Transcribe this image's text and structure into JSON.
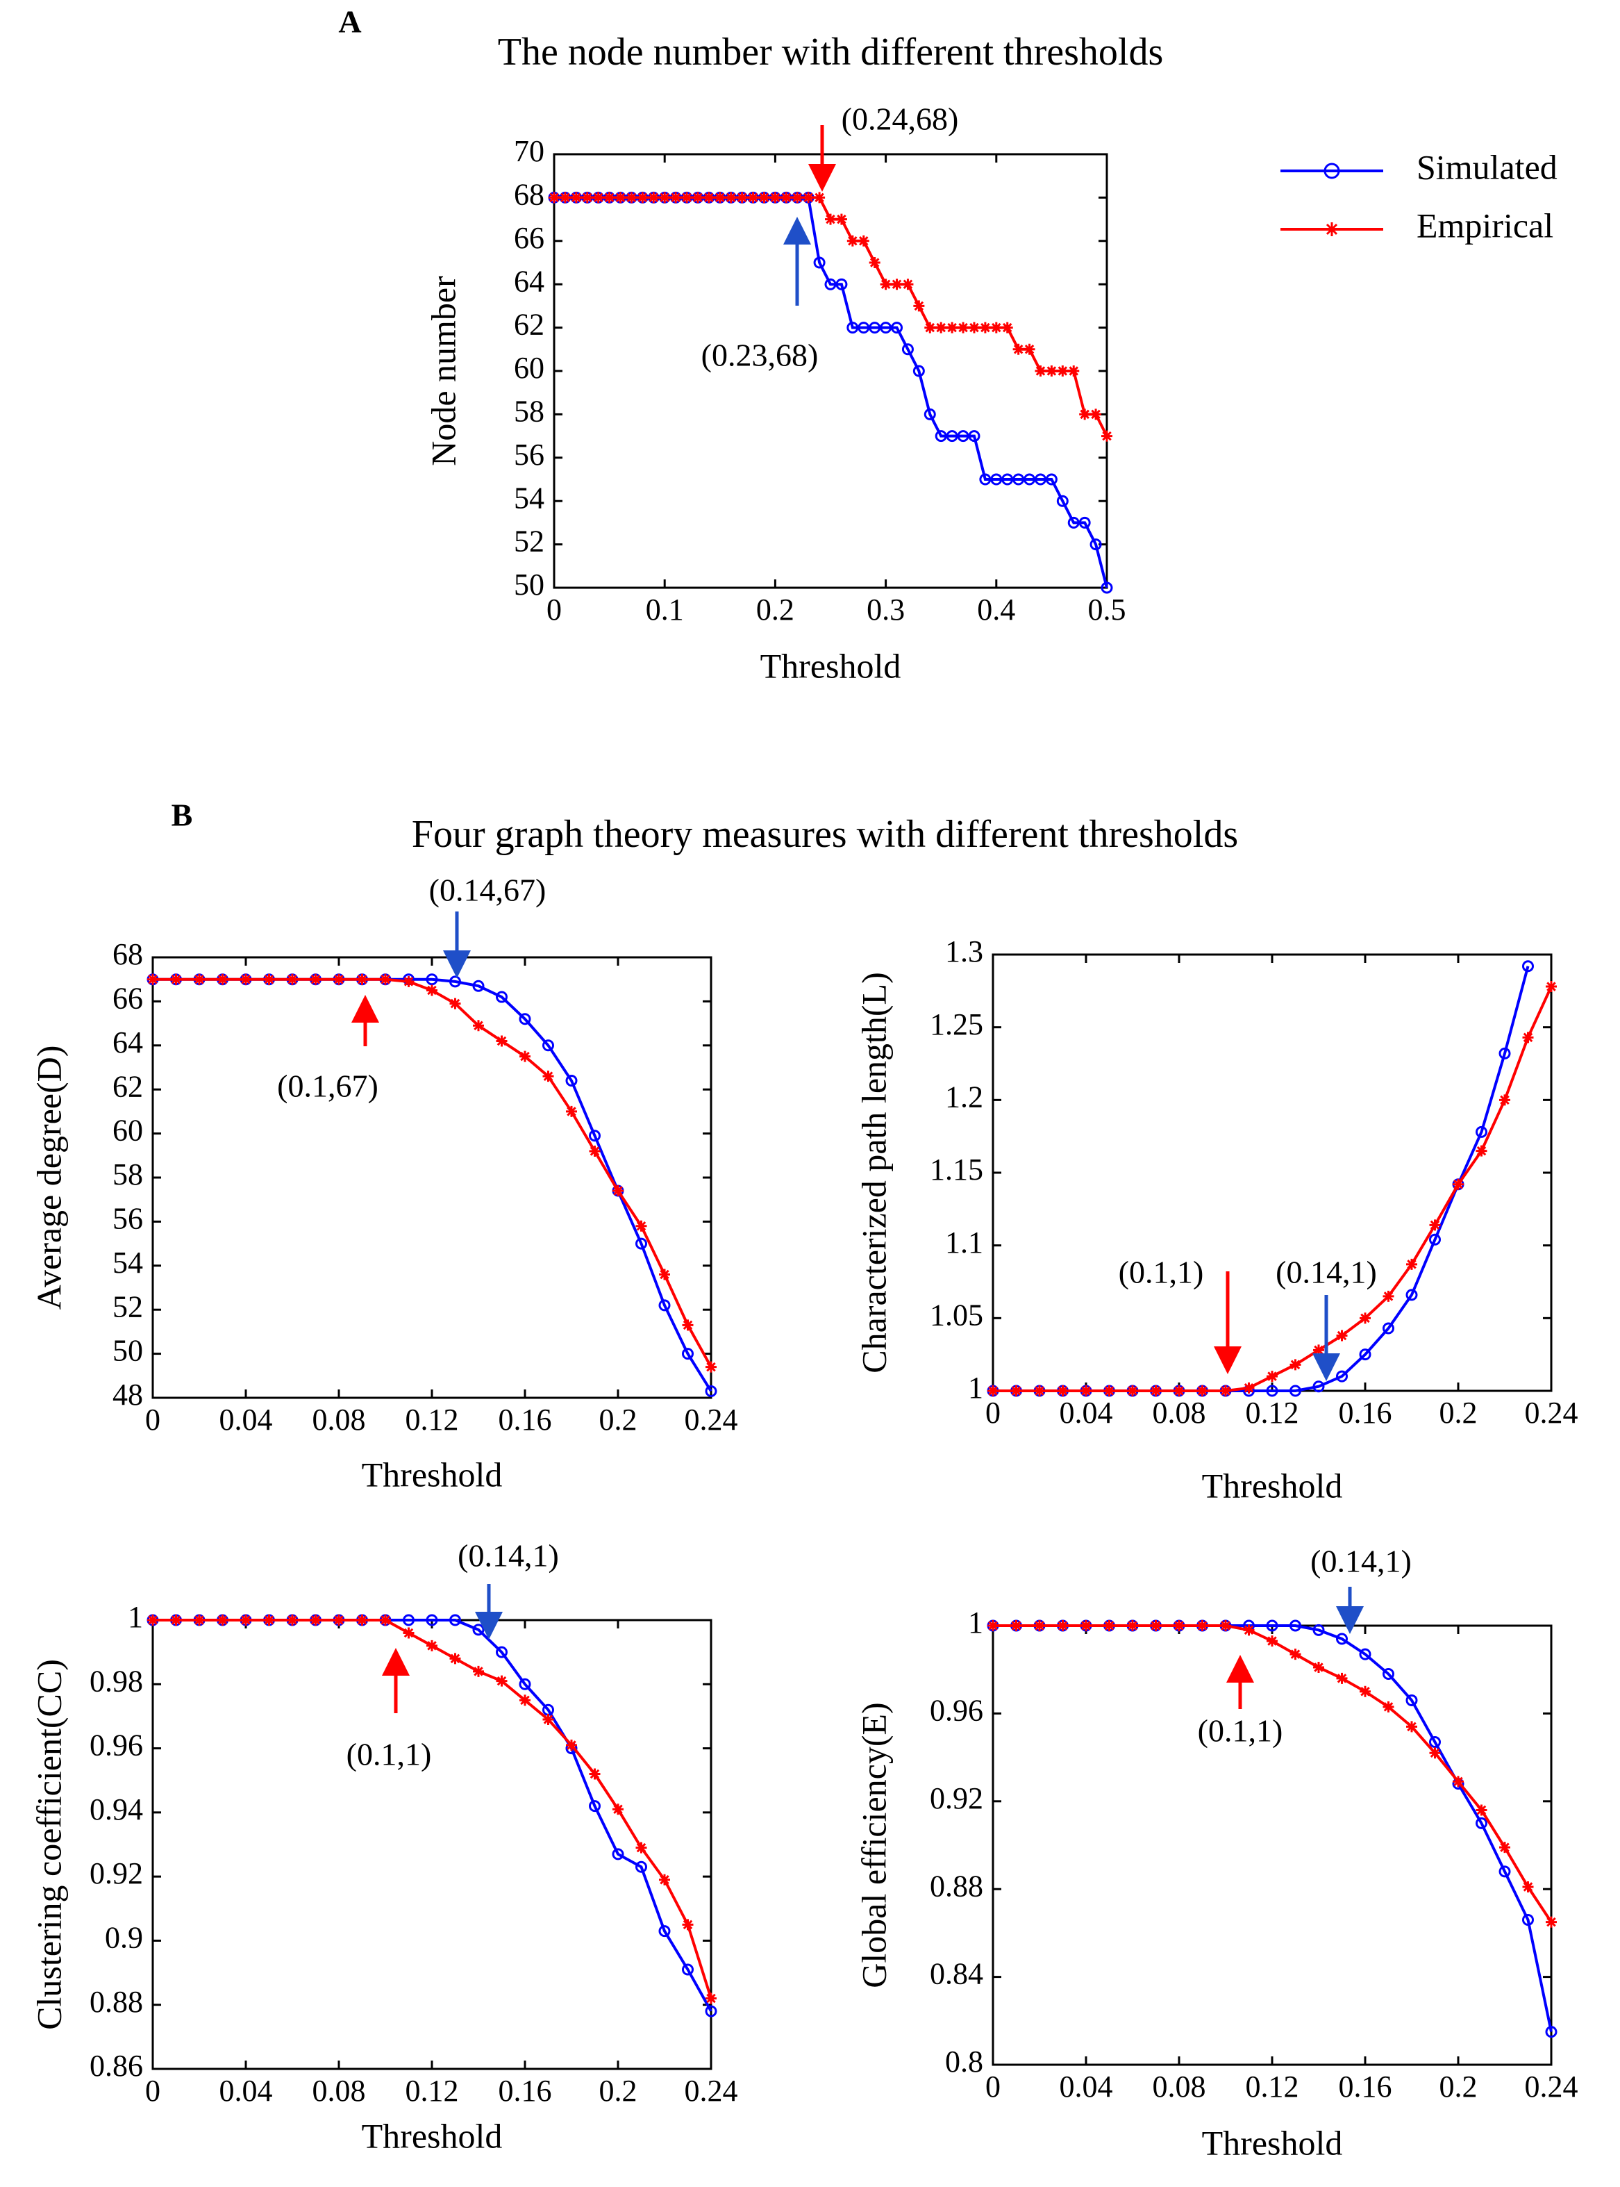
{
  "panels": [
    {
      "label": "A"
    },
    {
      "label": "B",
      "title": "Four graph theory measures with different thresholds"
    }
  ],
  "chart_data": [
    {
      "type": "line",
      "title": "The node number with different thresholds",
      "xlabel": "Threshold",
      "ylabel": "Node number",
      "legend": "right",
      "x": [
        0,
        0.01,
        0.02,
        0.03,
        0.04,
        0.05,
        0.06,
        0.07,
        0.08,
        0.09,
        0.1,
        0.11,
        0.12,
        0.13,
        0.14,
        0.15,
        0.16,
        0.17,
        0.18,
        0.19,
        0.2,
        0.21,
        0.22,
        0.23,
        0.24,
        0.25,
        0.26,
        0.27,
        0.28,
        0.29,
        0.3,
        0.31,
        0.32,
        0.33,
        0.34,
        0.35,
        0.36,
        0.37,
        0.38,
        0.39,
        0.4,
        0.41,
        0.42,
        0.43,
        0.44,
        0.45,
        0.46,
        0.47,
        0.48,
        0.49,
        0.5
      ],
      "xlim": [
        0,
        0.5
      ],
      "xticks": [
        0,
        0.1,
        0.2,
        0.3,
        0.4,
        0.5
      ],
      "ylim": [
        50,
        70
      ],
      "yticks": [
        50,
        52,
        54,
        56,
        58,
        60,
        62,
        64,
        66,
        68,
        70
      ],
      "series": [
        {
          "name": "Simulated",
          "color": "#0000ff",
          "marker": "circle",
          "values": [
            68,
            68,
            68,
            68,
            68,
            68,
            68,
            68,
            68,
            68,
            68,
            68,
            68,
            68,
            68,
            68,
            68,
            68,
            68,
            68,
            68,
            68,
            68,
            68,
            65,
            64,
            64,
            62,
            62,
            62,
            62,
            62,
            61,
            60,
            58,
            57,
            57,
            57,
            57,
            55,
            55,
            55,
            55,
            55,
            55,
            55,
            54,
            53,
            53,
            52,
            50
          ]
        },
        {
          "name": "Empirical",
          "color": "#ff0000",
          "marker": "star",
          "values": [
            68,
            68,
            68,
            68,
            68,
            68,
            68,
            68,
            68,
            68,
            68,
            68,
            68,
            68,
            68,
            68,
            68,
            68,
            68,
            68,
            68,
            68,
            68,
            68,
            68,
            67,
            67,
            66,
            66,
            65,
            64,
            64,
            64,
            63,
            62,
            62,
            62,
            62,
            62,
            62,
            62,
            62,
            61,
            61,
            60,
            60,
            60,
            60,
            58,
            58,
            57
          ]
        }
      ],
      "annotations": [
        {
          "text": "(0.24,68)",
          "color": "#ff0000"
        },
        {
          "text": "(0.23,68)",
          "color": "#1f4fc8"
        }
      ]
    },
    {
      "type": "line",
      "xlabel": "Threshold",
      "ylabel": "Average degree(D)",
      "x": [
        0,
        0.01,
        0.02,
        0.03,
        0.04,
        0.05,
        0.06,
        0.07,
        0.08,
        0.09,
        0.1,
        0.11,
        0.12,
        0.13,
        0.14,
        0.15,
        0.16,
        0.17,
        0.18,
        0.19,
        0.2,
        0.21,
        0.22,
        0.23,
        0.24
      ],
      "xlim": [
        0,
        0.24
      ],
      "xticks": [
        0,
        0.04,
        0.08,
        0.12,
        0.16,
        0.2,
        0.24
      ],
      "ylim": [
        48,
        68
      ],
      "yticks": [
        48,
        50,
        52,
        54,
        56,
        58,
        60,
        62,
        64,
        66,
        68
      ],
      "series": [
        {
          "color": "#0000ff",
          "marker": "circle",
          "values": [
            67,
            67,
            67,
            67,
            67,
            67,
            67,
            67,
            67,
            67,
            67,
            67,
            67,
            66.9,
            66.7,
            66.2,
            65.2,
            64.0,
            62.4,
            59.9,
            57.4,
            55.0,
            52.2,
            50.0,
            48.3
          ]
        },
        {
          "color": "#ff0000",
          "marker": "star",
          "values": [
            67,
            67,
            67,
            67,
            67,
            67,
            67,
            67,
            67,
            67,
            67,
            66.9,
            66.5,
            65.9,
            64.9,
            64.2,
            63.5,
            62.6,
            61.0,
            59.2,
            57.4,
            55.8,
            53.6,
            51.3,
            49.4
          ]
        }
      ],
      "annotations": [
        {
          "text": "(0.14,67)",
          "color": "#1f4fc8"
        },
        {
          "text": "(0.1,67)",
          "color": "#ff0000"
        }
      ]
    },
    {
      "type": "line",
      "xlabel": "Threshold",
      "ylabel": "Characterized path length(L)",
      "x": [
        0,
        0.01,
        0.02,
        0.03,
        0.04,
        0.05,
        0.06,
        0.07,
        0.08,
        0.09,
        0.1,
        0.11,
        0.12,
        0.13,
        0.14,
        0.15,
        0.16,
        0.17,
        0.18,
        0.19,
        0.2,
        0.21,
        0.22,
        0.23,
        0.24
      ],
      "xlim": [
        0,
        0.24
      ],
      "xticks": [
        0,
        0.04,
        0.08,
        0.12,
        0.16,
        0.2,
        0.24
      ],
      "ylim": [
        1,
        1.3
      ],
      "yticks": [
        1,
        1.05,
        1.1,
        1.15,
        1.2,
        1.25,
        1.3
      ],
      "series": [
        {
          "color": "#0000ff",
          "marker": "circle",
          "values": [
            1,
            1,
            1,
            1,
            1,
            1,
            1,
            1,
            1,
            1,
            1,
            1,
            1,
            1,
            1.003,
            1.01,
            1.025,
            1.043,
            1.066,
            1.104,
            1.142,
            1.178,
            1.232,
            1.292,
            null
          ]
        },
        {
          "color": "#ff0000",
          "marker": "star",
          "values": [
            1,
            1,
            1,
            1,
            1,
            1,
            1,
            1,
            1,
            1,
            1,
            1.002,
            1.01,
            1.018,
            1.028,
            1.038,
            1.05,
            1.065,
            1.087,
            1.114,
            1.142,
            1.165,
            1.2,
            1.243,
            1.278
          ]
        }
      ],
      "annotations": [
        {
          "text": "(0.1,1)",
          "color": "#ff0000"
        },
        {
          "text": "(0.14,1)",
          "color": "#1f4fc8"
        }
      ]
    },
    {
      "type": "line",
      "xlabel": "Threshold",
      "ylabel": "Clustering coefficient(CC)",
      "x": [
        0,
        0.01,
        0.02,
        0.03,
        0.04,
        0.05,
        0.06,
        0.07,
        0.08,
        0.09,
        0.1,
        0.11,
        0.12,
        0.13,
        0.14,
        0.15,
        0.16,
        0.17,
        0.18,
        0.19,
        0.2,
        0.21,
        0.22,
        0.23,
        0.24
      ],
      "xlim": [
        0,
        0.24
      ],
      "xticks": [
        0,
        0.04,
        0.08,
        0.12,
        0.16,
        0.2,
        0.24
      ],
      "ylim": [
        0.86,
        1
      ],
      "yticks": [
        0.86,
        0.88,
        0.9,
        0.92,
        0.94,
        0.96,
        0.98,
        1
      ],
      "series": [
        {
          "color": "#0000ff",
          "marker": "circle",
          "values": [
            1,
            1,
            1,
            1,
            1,
            1,
            1,
            1,
            1,
            1,
            1,
            1,
            1,
            1,
            0.997,
            0.99,
            0.98,
            0.972,
            0.96,
            0.942,
            0.927,
            0.923,
            0.903,
            0.891,
            0.878
          ]
        },
        {
          "color": "#ff0000",
          "marker": "star",
          "values": [
            1,
            1,
            1,
            1,
            1,
            1,
            1,
            1,
            1,
            1,
            1,
            0.996,
            0.992,
            0.988,
            0.984,
            0.981,
            0.975,
            0.969,
            0.961,
            0.952,
            0.941,
            0.929,
            0.919,
            0.905,
            0.882
          ]
        }
      ],
      "annotations": [
        {
          "text": "(0.14,1)",
          "color": "#1f4fc8"
        },
        {
          "text": "(0.1,1)",
          "color": "#ff0000"
        }
      ]
    },
    {
      "type": "line",
      "xlabel": "Threshold",
      "ylabel": "Global efficiency(E)",
      "x": [
        0,
        0.01,
        0.02,
        0.03,
        0.04,
        0.05,
        0.06,
        0.07,
        0.08,
        0.09,
        0.1,
        0.11,
        0.12,
        0.13,
        0.14,
        0.15,
        0.16,
        0.17,
        0.18,
        0.19,
        0.2,
        0.21,
        0.22,
        0.23,
        0.24
      ],
      "xlim": [
        0,
        0.24
      ],
      "xticks": [
        0,
        0.04,
        0.08,
        0.12,
        0.16,
        0.2,
        0.24
      ],
      "ylim": [
        0.8,
        1
      ],
      "yticks": [
        0.8,
        0.84,
        0.88,
        0.92,
        0.96,
        1
      ],
      "series": [
        {
          "color": "#0000ff",
          "marker": "circle",
          "values": [
            1,
            1,
            1,
            1,
            1,
            1,
            1,
            1,
            1,
            1,
            1,
            1,
            1,
            1,
            0.998,
            0.994,
            0.987,
            0.978,
            0.966,
            0.947,
            0.928,
            0.91,
            0.888,
            0.866,
            0.815
          ]
        },
        {
          "color": "#ff0000",
          "marker": "star",
          "values": [
            1,
            1,
            1,
            1,
            1,
            1,
            1,
            1,
            1,
            1,
            1,
            0.998,
            0.993,
            0.987,
            0.981,
            0.976,
            0.97,
            0.963,
            0.954,
            0.942,
            0.929,
            0.916,
            0.899,
            0.881,
            0.865
          ]
        }
      ],
      "annotations": [
        {
          "text": "(0.14,1)",
          "color": "#1f4fc8"
        },
        {
          "text": "(0.1,1)",
          "color": "#ff0000"
        }
      ]
    }
  ]
}
